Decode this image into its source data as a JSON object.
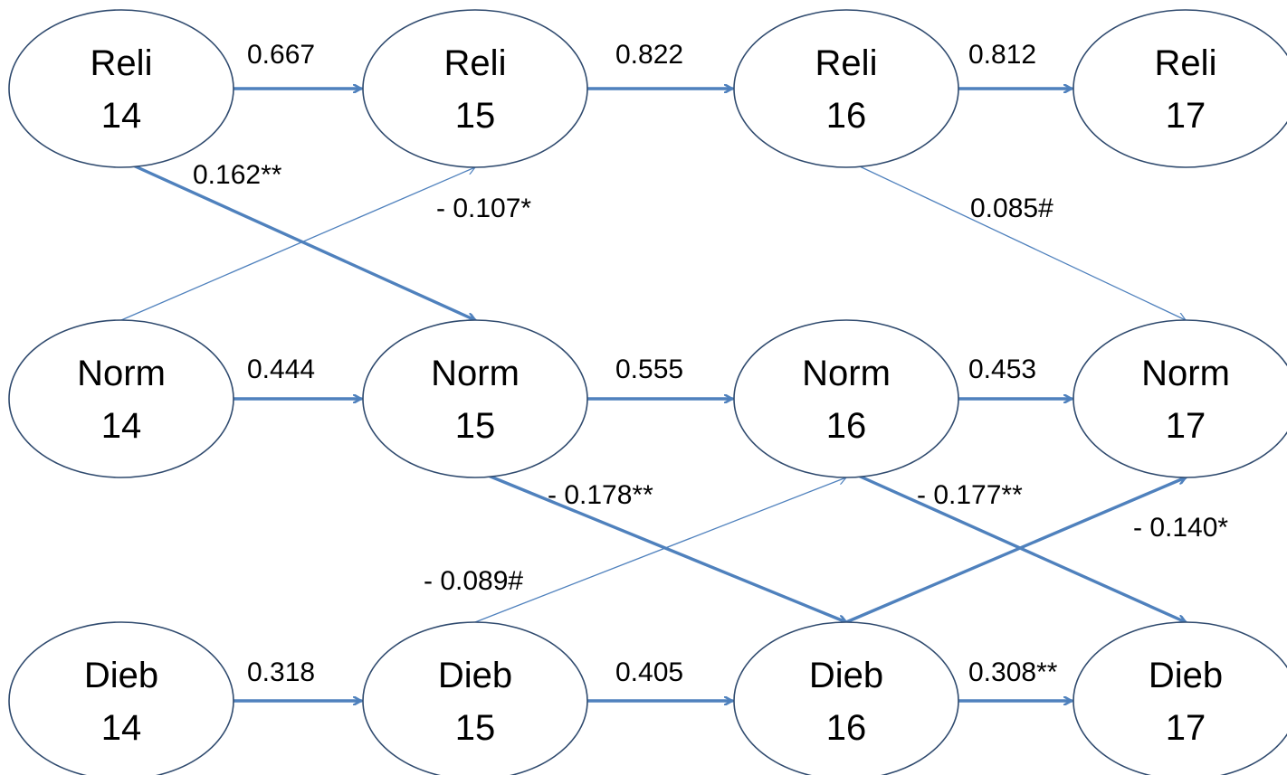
{
  "diagram": {
    "edge_color": "#4f81bd",
    "node_border_color": "#2f4a6e",
    "nodes": [
      {
        "id": "reli14",
        "name": "Reli",
        "wave": "14"
      },
      {
        "id": "reli15",
        "name": "Reli",
        "wave": "15"
      },
      {
        "id": "reli16",
        "name": "Reli",
        "wave": "16"
      },
      {
        "id": "reli17",
        "name": "Reli",
        "wave": "17"
      },
      {
        "id": "norm14",
        "name": "Norm",
        "wave": "14"
      },
      {
        "id": "norm15",
        "name": "Norm",
        "wave": "15"
      },
      {
        "id": "norm16",
        "name": "Norm",
        "wave": "16"
      },
      {
        "id": "norm17",
        "name": "Norm",
        "wave": "17"
      },
      {
        "id": "dieb14",
        "name": "Dieb",
        "wave": "14"
      },
      {
        "id": "dieb15",
        "name": "Dieb",
        "wave": "15"
      },
      {
        "id": "dieb16",
        "name": "Dieb",
        "wave": "16"
      },
      {
        "id": "dieb17",
        "name": "Dieb",
        "wave": "17"
      }
    ],
    "edges": [
      {
        "from": "reli14",
        "to": "reli15",
        "label": "0.667",
        "weight": "strong"
      },
      {
        "from": "reli15",
        "to": "reli16",
        "label": "0.822",
        "weight": "strong"
      },
      {
        "from": "reli16",
        "to": "reli17",
        "label": "0.812",
        "weight": "strong"
      },
      {
        "from": "norm14",
        "to": "norm15",
        "label": "0.444",
        "weight": "strong"
      },
      {
        "from": "norm15",
        "to": "norm16",
        "label": "0.555",
        "weight": "strong"
      },
      {
        "from": "norm16",
        "to": "norm17",
        "label": "0.453",
        "weight": "strong"
      },
      {
        "from": "dieb14",
        "to": "dieb15",
        "label": "0.318",
        "weight": "strong"
      },
      {
        "from": "dieb15",
        "to": "dieb16",
        "label": "0.405",
        "weight": "strong"
      },
      {
        "from": "dieb16",
        "to": "dieb17",
        "label": "0.308**",
        "weight": "strong"
      },
      {
        "from": "reli14",
        "to": "norm15",
        "label": "0.162**",
        "weight": "strong"
      },
      {
        "from": "norm14",
        "to": "reli15",
        "label": "- 0.107*",
        "weight": "thin"
      },
      {
        "from": "reli16",
        "to": "norm17",
        "label": "0.085#",
        "weight": "thin"
      },
      {
        "from": "norm15",
        "to": "dieb16",
        "label": "- 0.178**",
        "weight": "strong"
      },
      {
        "from": "dieb15",
        "to": "norm16",
        "label": "- 0.089#",
        "weight": "thin"
      },
      {
        "from": "norm16",
        "to": "dieb17",
        "label": "- 0.177**",
        "weight": "strong"
      },
      {
        "from": "dieb16",
        "to": "norm17",
        "label": "- 0.140*",
        "weight": "strong"
      }
    ]
  }
}
